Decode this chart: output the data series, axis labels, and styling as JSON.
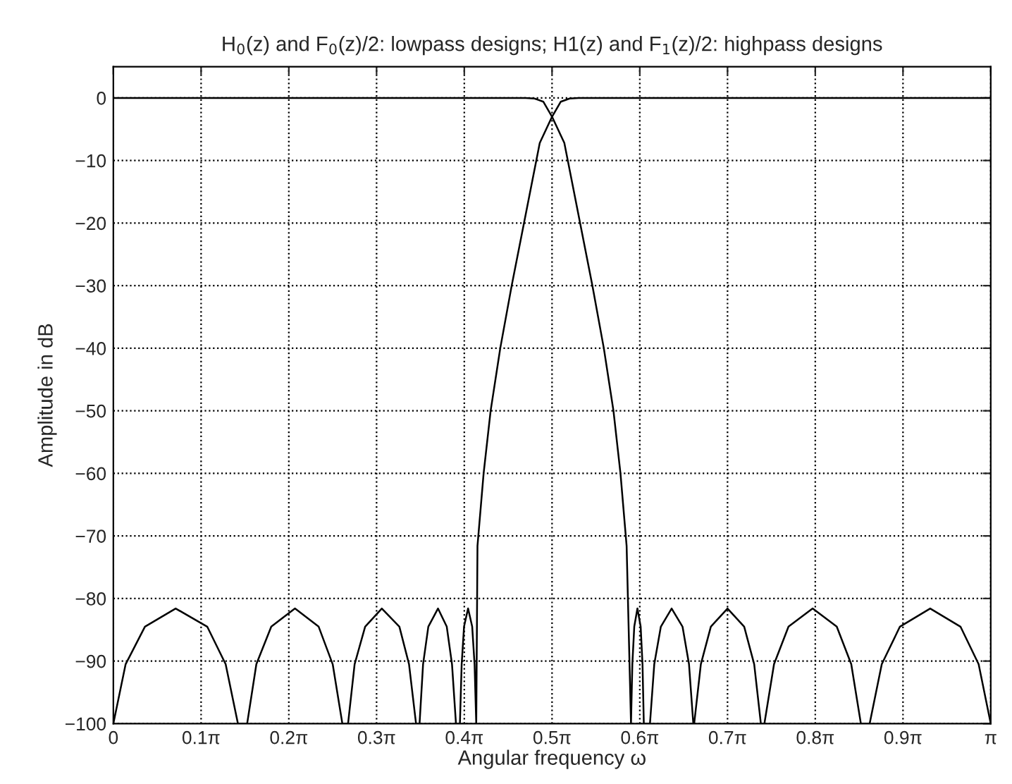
{
  "chart_data": {
    "type": "line",
    "title": "H$_{0}$(z) and F$_{0}$(z)/2: lowpass designs; H1(z) and F$_{1}$(z)/2: highpass designs",
    "xlabel": "Angular frequency ω",
    "ylabel": "Amplitude in dB",
    "series": [
      {
        "color": "#000000",
        "x": [
          0,
          1.4765,
          1.508,
          1.5394,
          1.5708,
          1.6148,
          1.6713,
          1.7153,
          1.7562,
          1.7907,
          1.8158,
          1.8378,
          1.8535,
          1.8583,
          1.8652,
          1.8765,
          1.8881,
          1.8947,
          1.8994,
          1.9214,
          1.9368,
          1.9604,
          1.999,
          2.038,
          2.0612,
          2.0766,
          2.0797,
          2.1036,
          2.1394,
          2.1991,
          2.2588,
          2.2946,
          2.3185,
          2.3311,
          2.3656,
          2.4175,
          2.5039,
          2.5902,
          2.6421,
          2.6766,
          2.708,
          2.7514,
          2.8164,
          2.9248,
          3.0332,
          3.0982,
          3.1416
        ],
        "values": [
          0,
          0,
          -0.1,
          -0.6,
          -3,
          -7.2,
          -20,
          -30,
          -40,
          -50,
          -60,
          -71.6,
          -100,
          -90.5,
          -84.5,
          -81.6,
          -84.5,
          -90.5,
          -100,
          -100,
          -90.5,
          -84.5,
          -81.6,
          -84.5,
          -90.5,
          -100,
          -100,
          -90.5,
          -84.5,
          -81.6,
          -84.5,
          -90.5,
          -100,
          -100,
          -90.5,
          -84.5,
          -81.6,
          -84.5,
          -90.5,
          -100,
          -100,
          -90.5,
          -84.5,
          -81.6,
          -84.5,
          -90.5,
          -100
        ]
      },
      {
        "color": "#000000",
        "x": [
          0,
          0.044,
          0.1131,
          0.2231,
          0.3361,
          0.4021,
          0.4461,
          0.4791,
          0.5121,
          0.5655,
          0.6503,
          0.7351,
          0.7854,
          0.82,
          0.8404,
          0.8639,
          0.9016,
          0.9613,
          1.0242,
          1.0587,
          1.0838,
          1.0964,
          1.109,
          1.1278,
          1.1624,
          1.1938,
          1.2126,
          1.2268,
          1.2409,
          1.2472,
          1.2557,
          1.2701,
          1.2849,
          1.2934,
          1.2994,
          1.3038,
          1.3258,
          1.3509,
          1.3854,
          1.4263,
          1.4703,
          1.5268,
          1.5708,
          1.6022,
          1.6336,
          1.665,
          3.1416
        ],
        "values": [
          -100,
          -90.5,
          -84.5,
          -81.6,
          -84.5,
          -90.5,
          -100,
          -100,
          -90.5,
          -84.5,
          -81.6,
          -84.5,
          -90.5,
          -100,
          -100,
          -90.5,
          -84.5,
          -81.6,
          -84.5,
          -90.5,
          -100,
          -100,
          -90.5,
          -84.5,
          -81.6,
          -84.5,
          -90.5,
          -100,
          -100,
          -90.5,
          -84.5,
          -81.6,
          -84.5,
          -90.5,
          -100,
          -71.6,
          -60,
          -50,
          -40,
          -30,
          -20,
          -7.2,
          -3,
          -0.6,
          -0.1,
          0,
          0
        ]
      }
    ],
    "xlim": [
      0,
      3.1416
    ],
    "ylim": [
      -100,
      5
    ],
    "xticks": [
      0,
      {
        "value": 0.3142,
        "label": "0.1π"
      },
      {
        "value": 0.6283,
        "label": "0.2π"
      },
      {
        "value": 0.9425,
        "label": "0.3π"
      },
      {
        "value": 1.2566,
        "label": "0.4π"
      },
      {
        "value": 1.5708,
        "label": "0.5π"
      },
      {
        "value": 1.885,
        "label": "0.6π"
      },
      {
        "value": 2.1991,
        "label": "0.7π"
      },
      {
        "value": 2.5133,
        "label": "0.8π"
      },
      {
        "value": 2.8274,
        "label": "0.9π"
      },
      {
        "value": 3.1416,
        "label": "π"
      }
    ],
    "yticks": [
      0,
      -10,
      -20,
      -30,
      -40,
      -50,
      -60,
      -70,
      -80,
      -90,
      -100
    ],
    "grid": true,
    "marker": "none",
    "line_style": "solid"
  }
}
